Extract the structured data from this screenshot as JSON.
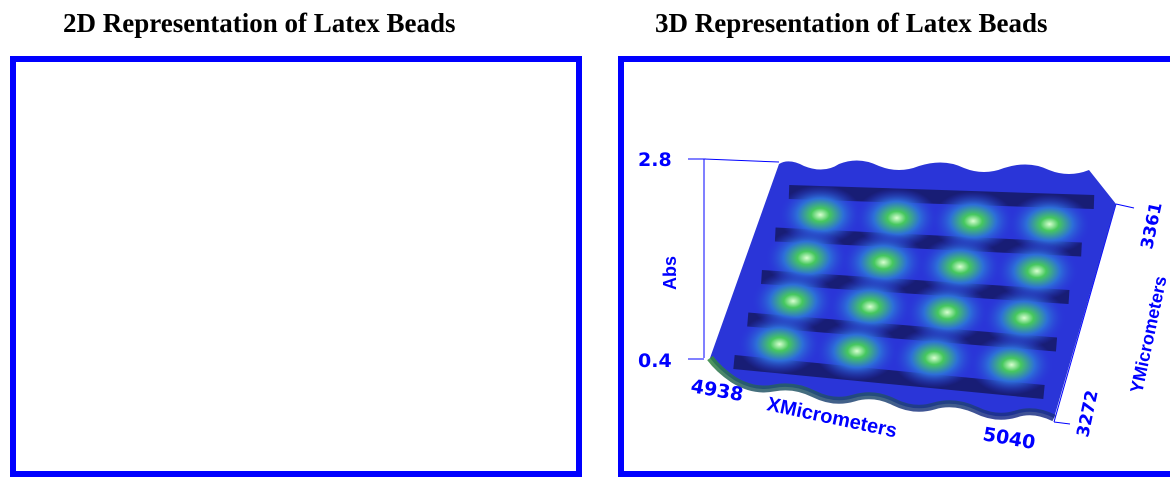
{
  "panels": {
    "left_title": "2D Representation of Latex Beads",
    "right_title": "3D Representation of Latex Beads"
  },
  "colors": {
    "frame": "#0000ff",
    "axis_text": "#0000ff",
    "surface_low": "#0a0a25",
    "surface_mid": "#2a35d8",
    "surface_peak": "#42c65a"
  },
  "chart_data": [
    {
      "type": "heatmap",
      "title": "2D Representation of Latex Beads",
      "content": "blank"
    },
    {
      "type": "surface3d",
      "title": "3D Representation of Latex Beads",
      "x": {
        "label": "XMicrometers",
        "min": 4938,
        "max": 5040,
        "tick_labels": [
          "4938",
          "5040"
        ]
      },
      "y": {
        "label": "YMicrometers",
        "min": 3272,
        "max": 3361,
        "tick_labels": [
          "3272",
          "3361"
        ]
      },
      "z": {
        "label": "Abs",
        "min": 0.4,
        "max": 2.8,
        "tick_labels": [
          "0.4",
          "2.8"
        ]
      },
      "grid": false,
      "beads": {
        "rows": 4,
        "cols": 4
      }
    }
  ]
}
